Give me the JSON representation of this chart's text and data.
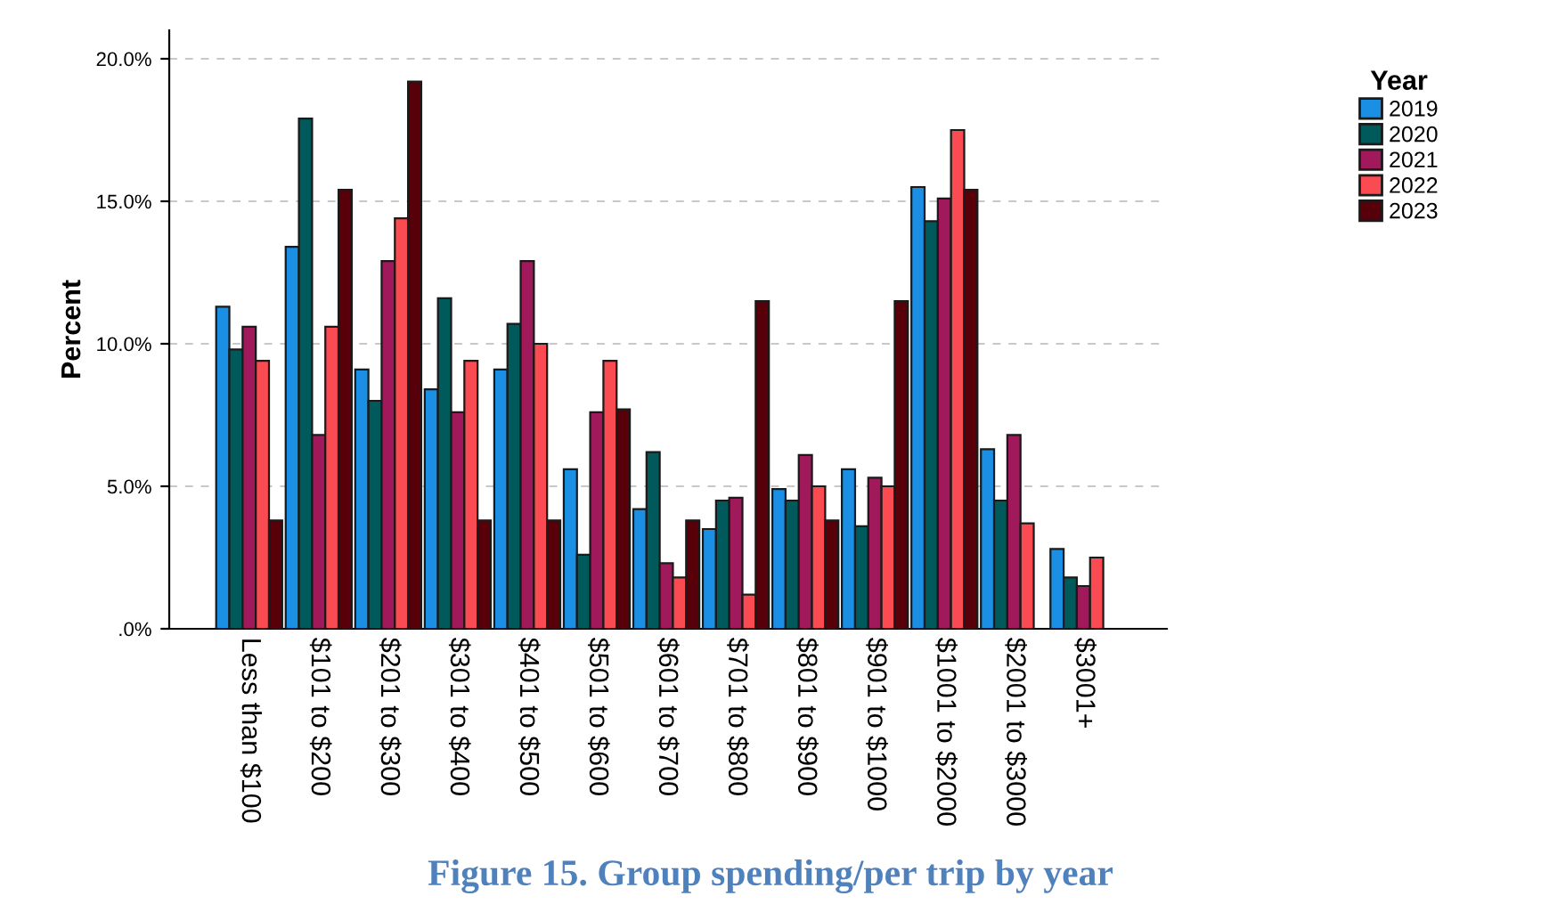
{
  "chart_data": {
    "type": "bar",
    "title": "Figure 15. Group spending/per trip by year",
    "ylabel": "Percent",
    "legend_title": "Year",
    "legend": "top right",
    "categories": [
      "Less than $100",
      "$101 to $200",
      "$201 to $300",
      "$301 to $400",
      "$401 to $500",
      "$501 to $600",
      "$601 to $700",
      "$701 to $800",
      "$801 to $900",
      "$901 to $1000",
      "$1001 to $2000",
      "$2001 to $3000",
      "$3001+"
    ],
    "series": [
      {
        "name": "2019",
        "color": "#1a8fe3",
        "values": [
          11.3,
          13.4,
          9.1,
          8.4,
          9.1,
          5.6,
          4.2,
          3.5,
          4.9,
          5.6,
          15.5,
          6.3,
          2.8
        ]
      },
      {
        "name": "2020",
        "color": "#005a5b",
        "values": [
          9.8,
          17.9,
          8.0,
          11.6,
          10.7,
          2.6,
          6.2,
          4.5,
          4.5,
          3.6,
          14.3,
          4.5,
          1.8
        ]
      },
      {
        "name": "2021",
        "color": "#a0195a",
        "values": [
          10.6,
          6.8,
          12.9,
          7.6,
          12.9,
          7.6,
          2.3,
          4.6,
          6.1,
          5.3,
          15.1,
          6.8,
          1.5
        ]
      },
      {
        "name": "2022",
        "color": "#fa4b52",
        "values": [
          9.4,
          10.6,
          14.4,
          9.4,
          10.0,
          9.4,
          1.8,
          1.2,
          5.0,
          5.0,
          17.5,
          3.7,
          2.5
        ]
      },
      {
        "name": "2023",
        "color": "#57000a",
        "values": [
          3.8,
          15.4,
          19.2,
          3.8,
          3.8,
          7.7,
          3.8,
          11.5,
          3.8,
          11.5,
          15.4,
          null,
          null
        ]
      }
    ],
    "ylim": [
      0,
      21
    ],
    "yticks": [
      {
        "value": 0,
        "label": ".0%"
      },
      {
        "value": 5,
        "label": "5.0%"
      },
      {
        "value": 10,
        "label": "10.0%"
      },
      {
        "value": 15,
        "label": "15.0%"
      },
      {
        "value": 20,
        "label": "20.0%"
      }
    ],
    "grid": "y"
  }
}
